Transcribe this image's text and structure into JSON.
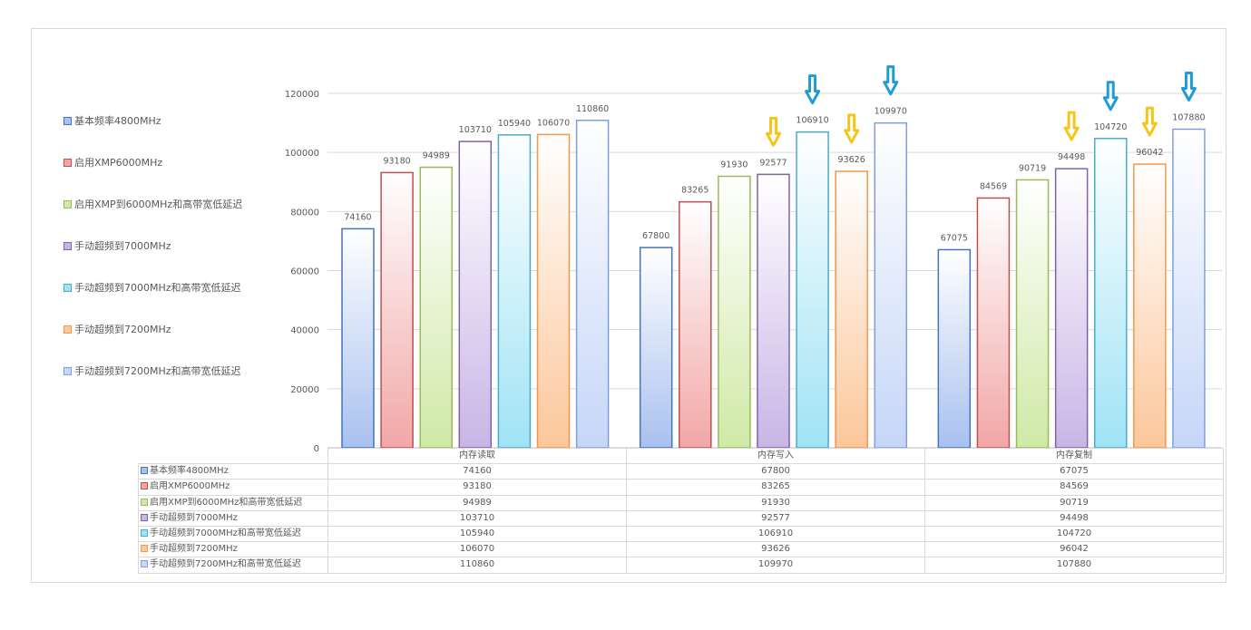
{
  "chart_data": {
    "type": "bar",
    "categories": [
      "内存读取",
      "内存写入",
      "内存复制"
    ],
    "ylim": [
      0,
      120000
    ],
    "yticks": [
      "0",
      "20000",
      "40000",
      "60000",
      "80000",
      "100000",
      "120000"
    ],
    "grid": true,
    "legend_placement": "left",
    "series": [
      {
        "name": "基本频率4800MHz",
        "values": [
          74160,
          67800,
          67075
        ],
        "labels": [
          "74160",
          "67800",
          "67075"
        ],
        "color": "#4472c4",
        "fill": "#a9c1ef"
      },
      {
        "name": "启用XMP6000MHz",
        "values": [
          93180,
          83265,
          84569
        ],
        "labels": [
          "93180",
          "83265",
          "84569"
        ],
        "color": "#c0504d",
        "fill": "#f2a7a7"
      },
      {
        "name": "启用XMP到6000MHz和高带宽低延迟",
        "values": [
          94989,
          91930,
          90719
        ],
        "labels": [
          "94989",
          "91930",
          "90719"
        ],
        "color": "#9bbb59",
        "fill": "#cfe9a6"
      },
      {
        "name": "手动超频到7000MHz",
        "values": [
          103710,
          92577,
          94498
        ],
        "labels": [
          "103710",
          "92577",
          "94498"
        ],
        "color": "#8064a2",
        "fill": "#c8b5e6"
      },
      {
        "name": "手动超频到7000MHz和高带宽低延迟",
        "values": [
          105940,
          106910,
          104720
        ],
        "labels": [
          "105940",
          "106910",
          "104720"
        ],
        "color": "#4bacc6",
        "fill": "#9fe3f5"
      },
      {
        "name": "手动超频到7200MHz",
        "values": [
          106070,
          93626,
          96042
        ],
        "labels": [
          "106070",
          "93626",
          "96042"
        ],
        "color": "#f79646",
        "fill": "#fcc79b"
      },
      {
        "name": "手动超频到7200MHz和高带宽低延迟",
        "values": [
          110860,
          109970,
          107880
        ],
        "labels": [
          "110860",
          "109970",
          "107880"
        ],
        "color": "#7f9fdb",
        "fill": "#c6d6f8"
      }
    ],
    "annotations": [
      {
        "type": "arrow-down",
        "color": "#f5c518",
        "category": "内存写入",
        "series": "手动超频到7000MHz"
      },
      {
        "type": "arrow-down",
        "color": "#f5c518",
        "category": "内存写入",
        "series": "手动超频到7200MHz"
      },
      {
        "type": "arrow-down",
        "color": "#1f9bd7",
        "category": "内存写入",
        "series": "手动超频到7000MHz和高带宽低延迟"
      },
      {
        "type": "arrow-down",
        "color": "#1f9bd7",
        "category": "内存写入",
        "series": "手动超频到7200MHz和高带宽低延迟"
      },
      {
        "type": "arrow-down",
        "color": "#f5c518",
        "category": "内存复制",
        "series": "手动超频到7000MHz"
      },
      {
        "type": "arrow-down",
        "color": "#f5c518",
        "category": "内存复制",
        "series": "手动超频到7200MHz"
      },
      {
        "type": "arrow-down",
        "color": "#1f9bd7",
        "category": "内存复制",
        "series": "手动超频到7000MHz和高带宽低延迟"
      },
      {
        "type": "arrow-down",
        "color": "#1f9bd7",
        "category": "内存复制",
        "series": "手动超频到7200MHz和高带宽低延迟"
      }
    ]
  }
}
